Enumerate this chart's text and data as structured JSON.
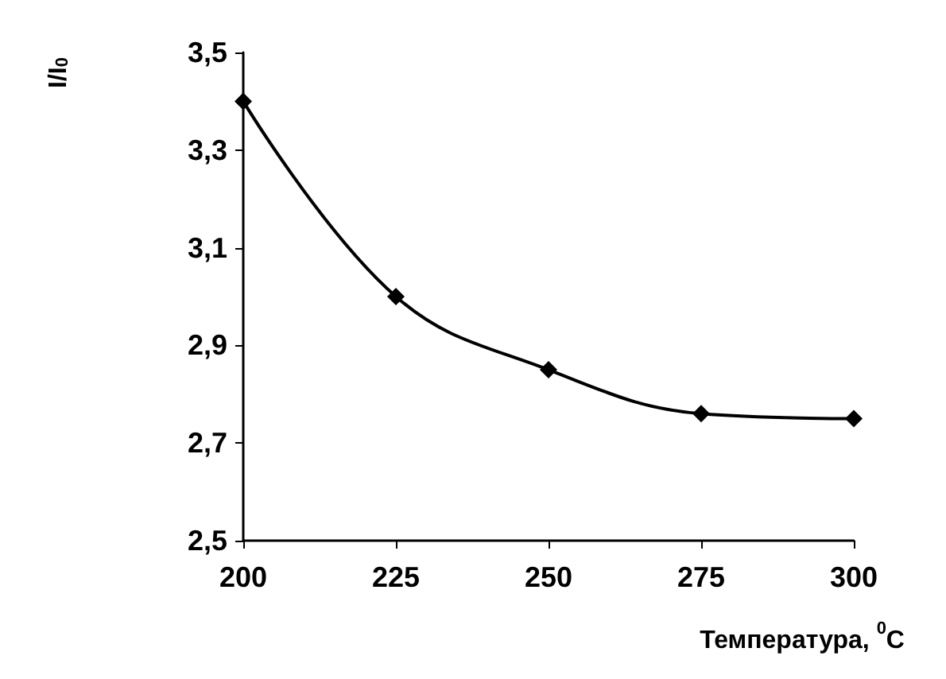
{
  "chart_data": {
    "type": "line",
    "xlabel": "Температура, $^{0}$C",
    "ylabel": "I/I$_{0}$",
    "x": [
      200,
      225,
      250,
      275,
      300
    ],
    "values": [
      3.4,
      3.0,
      2.85,
      2.76,
      2.75
    ],
    "color": "#000000",
    "marker": "diamond",
    "line_style": "solid",
    "grid": false,
    "xlim": [
      200,
      300
    ],
    "xticks": [
      200,
      225,
      250,
      275,
      300
    ],
    "ylim": [
      2.5,
      3.5
    ],
    "yticks": [
      {
        "value": 2.5,
        "label": "2,5"
      },
      {
        "value": 2.7,
        "label": "2,7"
      },
      {
        "value": 2.9,
        "label": "2,9"
      },
      {
        "value": 3.1,
        "label": "3,1"
      },
      {
        "value": 3.3,
        "label": "3,3"
      },
      {
        "value": 3.5,
        "label": "3,5"
      }
    ]
  }
}
